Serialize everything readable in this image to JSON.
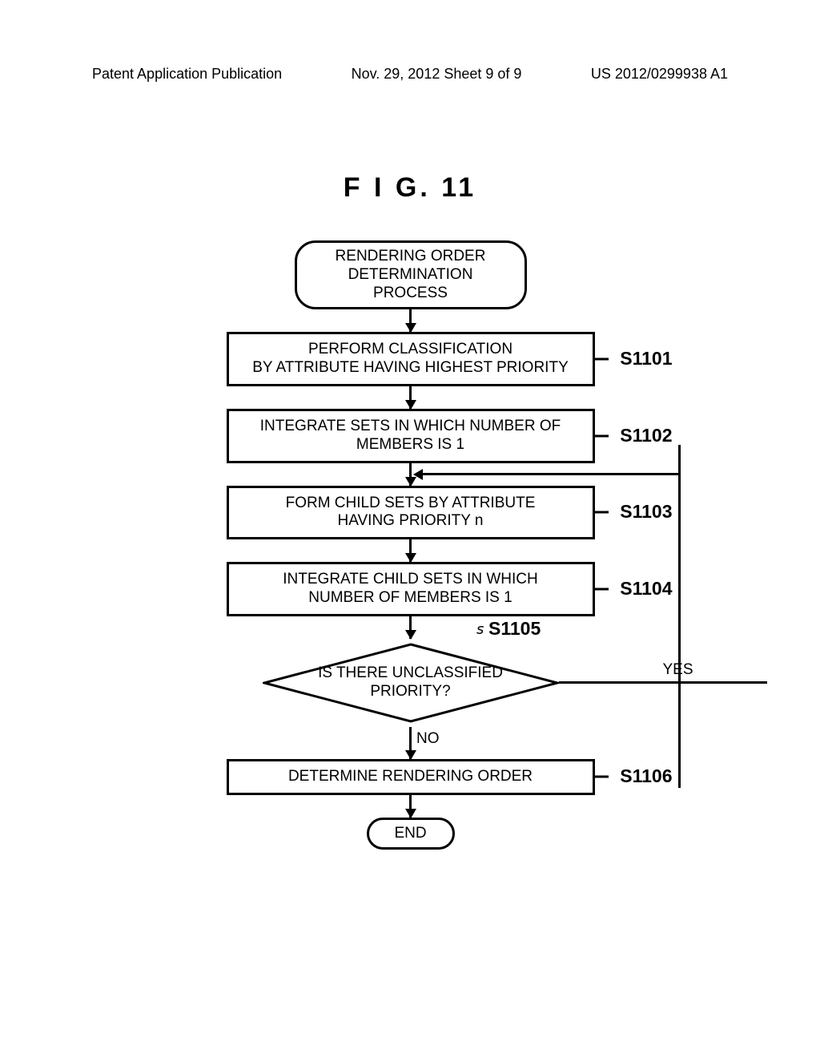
{
  "header": {
    "left": "Patent Application Publication",
    "center": "Nov. 29, 2012  Sheet 9 of 9",
    "right": "US 2012/0299938 A1"
  },
  "figure_title": "F I G.  11",
  "flowchart": {
    "start": "RENDERING ORDER\nDETERMINATION PROCESS",
    "steps": [
      {
        "id": "S1101",
        "text": "PERFORM CLASSIFICATION\nBY ATTRIBUTE HAVING HIGHEST PRIORITY"
      },
      {
        "id": "S1102",
        "text": "INTEGRATE SETS IN WHICH NUMBER OF\nMEMBERS IS 1"
      },
      {
        "id": "S1103",
        "text": "FORM CHILD SETS BY ATTRIBUTE\nHAVING PRIORITY n"
      },
      {
        "id": "S1104",
        "text": "INTEGRATE CHILD SETS IN WHICH\nNUMBER OF MEMBERS IS 1"
      }
    ],
    "decision": {
      "id": "S1105",
      "text": "IS THERE UNCLASSIFIED\nPRIORITY?",
      "yes": "YES",
      "no": "NO"
    },
    "final": {
      "id": "S1106",
      "text": "DETERMINE RENDERING ORDER"
    },
    "end": "END"
  },
  "colors": {
    "line": "#000000",
    "background": "#ffffff",
    "text": "#000000"
  },
  "layout": {
    "process_width": 460,
    "border_width": 3,
    "diamond_width": 370,
    "diamond_height": 100,
    "arrow_gap": 28,
    "font_size_body": 19,
    "font_size_label": 23,
    "font_size_header": 18,
    "font_size_title": 34
  }
}
